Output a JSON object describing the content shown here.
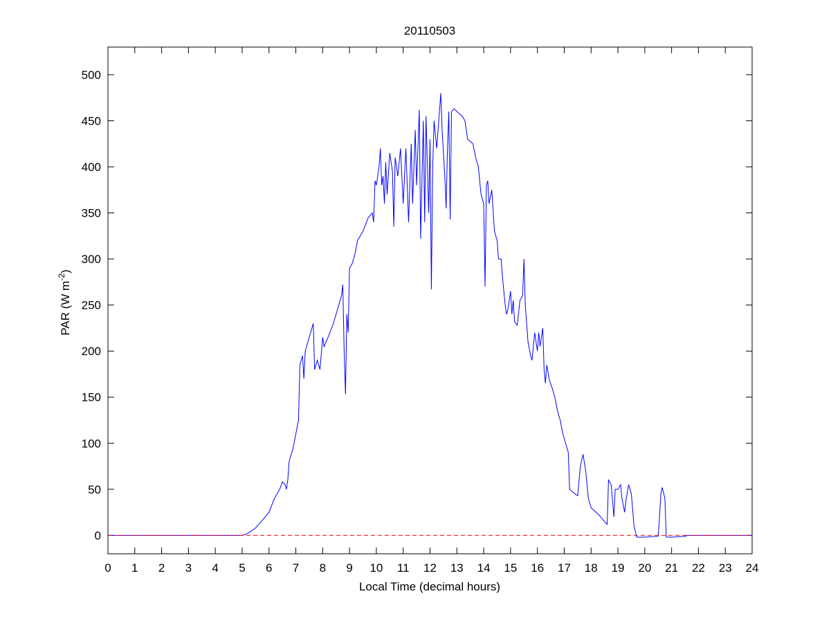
{
  "chart_data": {
    "type": "line",
    "title": "20110503",
    "x_label": "Local Time (decimal hours)",
    "y_label": {
      "base": "PAR (W m",
      "superscript": "-2",
      "close": ")"
    },
    "xlim": [
      0,
      24
    ],
    "xticks": [
      0,
      1,
      2,
      3,
      4,
      5,
      6,
      7,
      8,
      9,
      10,
      11,
      12,
      13,
      14,
      15,
      16,
      17,
      18,
      19,
      20,
      21,
      22,
      23,
      24
    ],
    "ylim": [
      -20,
      530
    ],
    "yticks": [
      0,
      50,
      100,
      150,
      200,
      250,
      300,
      350,
      400,
      450,
      500
    ],
    "grid": false,
    "series": [
      {
        "color": "#0000ff",
        "dash": false,
        "x": [
          0,
          5,
          5.2,
          5.5,
          5.8,
          6.0,
          6.2,
          6.4,
          6.5,
          6.6,
          6.65,
          6.7,
          6.75,
          6.9,
          7.0,
          7.1,
          7.15,
          7.25,
          7.3,
          7.35,
          7.5,
          7.6,
          7.65,
          7.7,
          7.8,
          7.9,
          8.0,
          8.05,
          8.2,
          8.4,
          8.6,
          8.7,
          8.75,
          8.8,
          8.85,
          8.9,
          8.95,
          9.0,
          9.1,
          9.2,
          9.3,
          9.5,
          9.7,
          9.85,
          9.9,
          9.95,
          10.0,
          10.1,
          10.15,
          10.2,
          10.25,
          10.3,
          10.35,
          10.4,
          10.5,
          10.6,
          10.65,
          10.7,
          10.8,
          10.9,
          11.0,
          11.1,
          11.2,
          11.3,
          11.35,
          11.45,
          11.5,
          11.6,
          11.65,
          11.75,
          11.8,
          11.85,
          11.95,
          12.0,
          12.05,
          12.1,
          12.15,
          12.25,
          12.35,
          12.4,
          12.45,
          12.55,
          12.6,
          12.65,
          12.7,
          12.75,
          12.8,
          12.9,
          13.0,
          13.2,
          13.3,
          13.4,
          13.6,
          13.7,
          13.8,
          13.9,
          14.0,
          14.05,
          14.1,
          14.15,
          14.2,
          14.3,
          14.4,
          14.5,
          14.55,
          14.65,
          14.7,
          14.8,
          14.85,
          14.9,
          15.0,
          15.05,
          15.1,
          15.15,
          15.25,
          15.35,
          15.45,
          15.5,
          15.55,
          15.65,
          15.75,
          15.8,
          15.9,
          16.0,
          16.05,
          16.1,
          16.2,
          16.25,
          16.3,
          16.35,
          16.45,
          16.55,
          16.65,
          16.75,
          16.85,
          16.95,
          17.05,
          17.15,
          17.2,
          17.4,
          17.5,
          17.6,
          17.7,
          17.8,
          17.9,
          18.0,
          18.3,
          18.5,
          18.6,
          18.65,
          18.75,
          18.85,
          18.9,
          19.0,
          19.1,
          19.15,
          19.25,
          19.3,
          19.4,
          19.5,
          19.6,
          19.7,
          20.0,
          20.5,
          20.55,
          20.6,
          20.65,
          20.75,
          20.8,
          21.0,
          21.5,
          21.6,
          24
        ],
        "values": [
          0,
          0,
          2,
          8,
          18,
          25,
          40,
          50,
          58,
          55,
          50,
          60,
          80,
          95,
          110,
          125,
          185,
          195,
          170,
          200,
          215,
          225,
          230,
          180,
          190,
          180,
          215,
          205,
          215,
          230,
          250,
          260,
          272,
          200,
          153,
          240,
          220,
          290,
          295,
          305,
          320,
          330,
          345,
          350,
          340,
          385,
          380,
          400,
          420,
          380,
          390,
          360,
          405,
          370,
          415,
          395,
          335,
          410,
          390,
          420,
          360,
          420,
          340,
          425,
          360,
          440,
          380,
          462,
          322,
          450,
          340,
          455,
          350,
          430,
          267,
          400,
          450,
          420,
          460,
          480,
          440,
          390,
          355,
          420,
          460,
          343,
          460,
          463,
          460,
          455,
          450,
          430,
          425,
          410,
          400,
          370,
          360,
          270,
          380,
          385,
          360,
          375,
          330,
          320,
          300,
          300,
          280,
          250,
          240,
          245,
          265,
          240,
          255,
          232,
          228,
          255,
          260,
          300,
          250,
          210,
          195,
          190,
          220,
          200,
          220,
          205,
          225,
          180,
          165,
          185,
          168,
          160,
          150,
          135,
          125,
          110,
          100,
          90,
          50,
          45,
          43,
          75,
          88,
          70,
          40,
          30,
          22,
          15,
          12,
          60,
          55,
          20,
          50,
          50,
          55,
          40,
          25,
          38,
          55,
          45,
          10,
          -2,
          -2,
          -1,
          20,
          45,
          52,
          40,
          -2,
          -2,
          -1,
          0,
          0
        ]
      },
      {
        "color": "#ff0000",
        "dash": true,
        "x": [
          0,
          24
        ],
        "values": [
          0,
          0
        ]
      }
    ]
  }
}
